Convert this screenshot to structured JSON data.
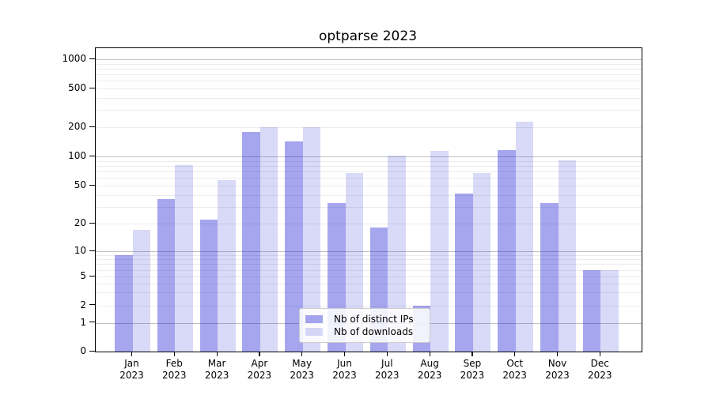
{
  "figure": {
    "title": "optparse 2023"
  },
  "legend": {
    "position": "lower center",
    "items": [
      {
        "label": "Nb of distinct IPs",
        "color": "rgba(0,0,208,0.35)"
      },
      {
        "label": "Nb of downloads",
        "color": "rgba(0,0,208,0.15)"
      }
    ]
  },
  "chart_data": {
    "type": "bar",
    "title": "optparse 2023",
    "categories": [
      "Jan 2023",
      "Feb 2023",
      "Mar 2023",
      "Apr 2023",
      "May 2023",
      "Jun 2023",
      "Jul 2023",
      "Aug 2023",
      "Sep 2023",
      "Oct 2023",
      "Nov 2023",
      "Dec 2023"
    ],
    "x_tick_months": [
      "Jan",
      "Feb",
      "Mar",
      "Apr",
      "May",
      "Jun",
      "Jul",
      "Aug",
      "Sep",
      "Oct",
      "Nov",
      "Dec"
    ],
    "x_tick_year": "2023",
    "series": [
      {
        "name": "Nb of distinct IPs",
        "color": "rgba(0,0,208,0.35)",
        "values": [
          9,
          36,
          22,
          178,
          142,
          33,
          18,
          2,
          41,
          116,
          33,
          6
        ]
      },
      {
        "name": "Nb of downloads",
        "color": "rgba(0,0,208,0.15)",
        "values": [
          17,
          81,
          57,
          200,
          200,
          67,
          102,
          114,
          67,
          227,
          91,
          6
        ]
      }
    ],
    "y_ticks": [
      0,
      1,
      2,
      5,
      10,
      20,
      50,
      100,
      200,
      500,
      1000
    ],
    "y_scale": "symlog",
    "ylim": [
      0,
      1300
    ],
    "grid": true,
    "legend_position": "lower center",
    "colors": {
      "bar_dark": "rgba(0,0,208,0.35)",
      "bar_light": "rgba(0,0,208,0.15)",
      "major_grid": "#c2c2c2",
      "minor_grid": "#ececec",
      "spine": "#000000",
      "text": "#000000"
    }
  }
}
